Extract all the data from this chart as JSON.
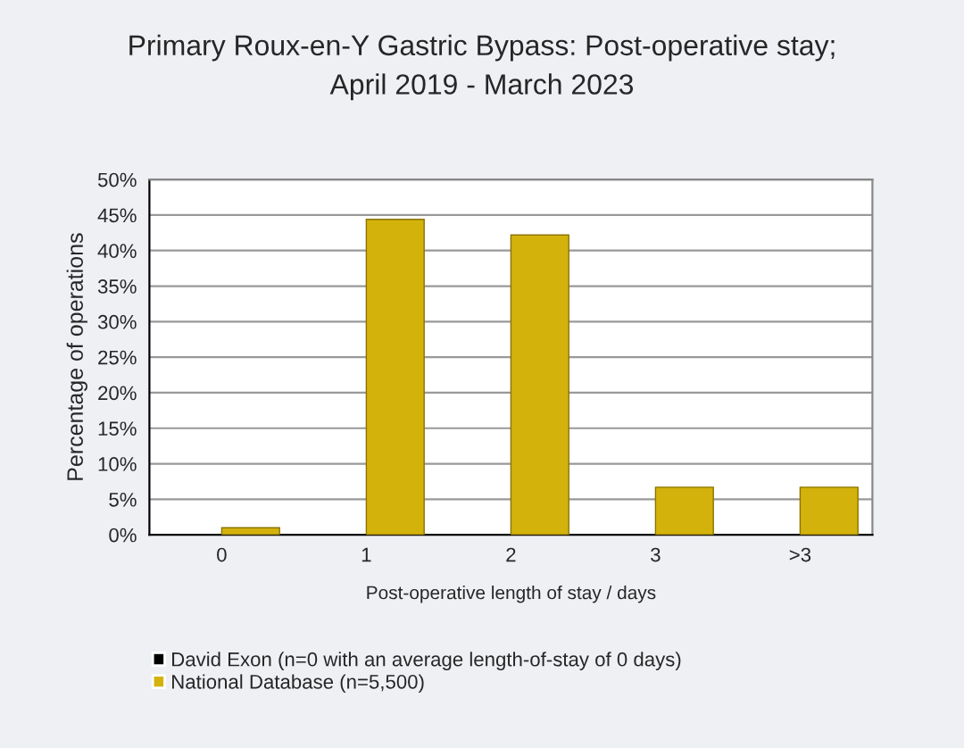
{
  "chart_data": {
    "type": "bar",
    "title": "Primary Roux-en-Y Gastric Bypass: Post-operative stay;\nApril 2019 - March 2023",
    "xlabel": "Post-operative length of stay / days",
    "ylabel": "Percentage of operations",
    "categories": [
      "0",
      "1",
      "2",
      "3",
      ">3"
    ],
    "series": [
      {
        "name": "David Exon (n=0 with an average length-of-stay of 0 days)",
        "color": "#000000",
        "values": [
          0,
          0,
          0,
          0,
          0
        ]
      },
      {
        "name": "National Database (n=5,500)",
        "color": "#d4b20c",
        "values": [
          1.0,
          44.4,
          42.2,
          6.7,
          6.7
        ]
      }
    ],
    "ylim": [
      0,
      50
    ],
    "yticks": [
      {
        "value": 0,
        "label": "0%"
      },
      {
        "value": 5,
        "label": "5%"
      },
      {
        "value": 10,
        "label": "10%"
      },
      {
        "value": 15,
        "label": "15%"
      },
      {
        "value": 20,
        "label": "20%"
      },
      {
        "value": 25,
        "label": "25%"
      },
      {
        "value": 30,
        "label": "30%"
      },
      {
        "value": 35,
        "label": "35%"
      },
      {
        "value": 40,
        "label": "40%"
      },
      {
        "value": 45,
        "label": "45%"
      },
      {
        "value": 50,
        "label": "50%"
      }
    ],
    "grid": "y",
    "legend": "bottom left"
  }
}
